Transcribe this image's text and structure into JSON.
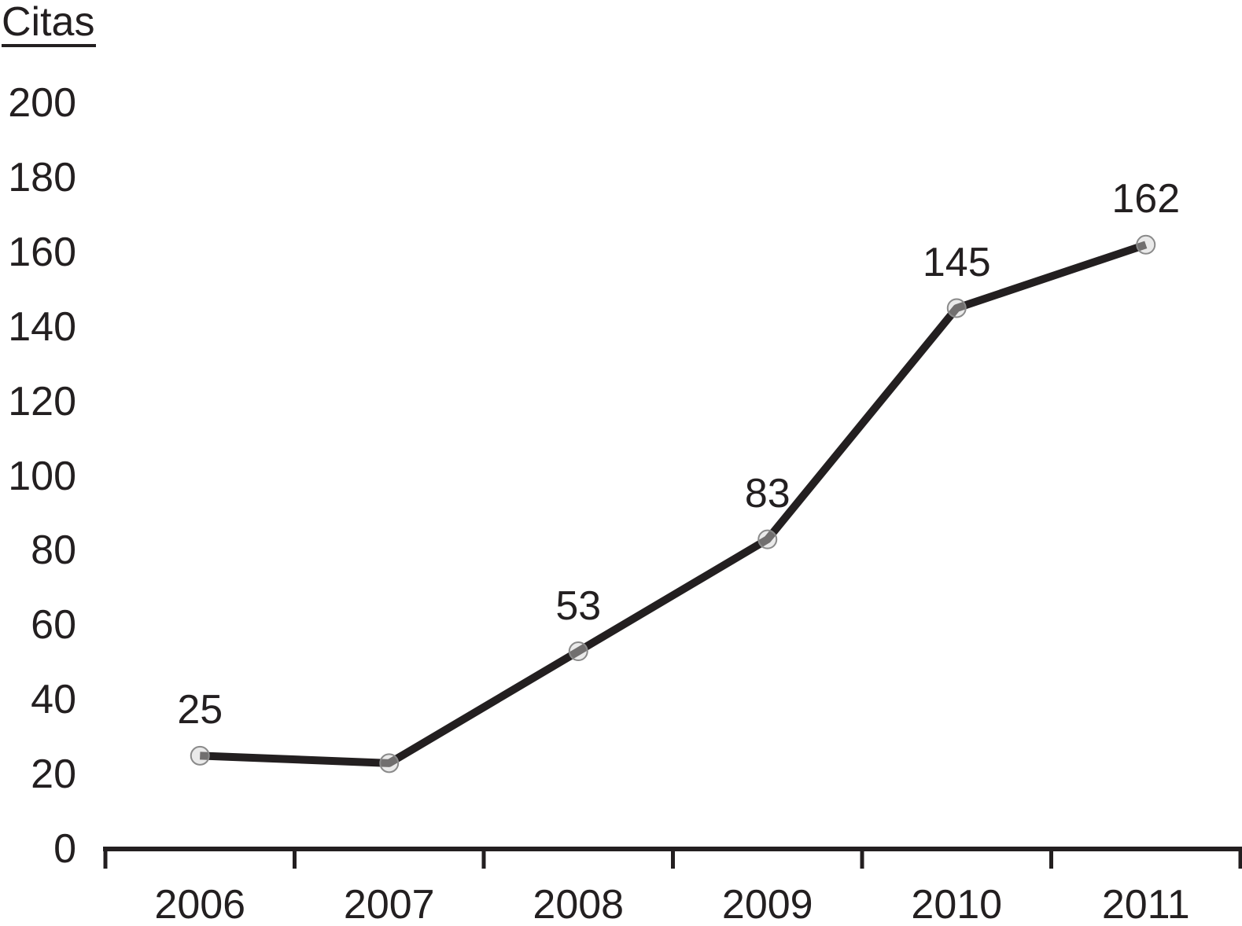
{
  "chart_data": {
    "type": "line",
    "title": "Citas",
    "categories": [
      "2006",
      "2007",
      "2008",
      "2009",
      "2010",
      "2011"
    ],
    "series": [
      {
        "name": "Citas",
        "values": [
          25,
          23,
          53,
          83,
          145,
          162
        ]
      }
    ],
    "point_labels": [
      "25",
      "",
      "53",
      "83",
      "145",
      "162"
    ],
    "xlabel": "",
    "ylabel": "Citas",
    "ylim": [
      0,
      200
    ],
    "ytick_step": 20,
    "ytick_labels": [
      "0",
      "20",
      "40",
      "60",
      "80",
      "100",
      "120",
      "140",
      "160",
      "180",
      "200"
    ],
    "grid": false,
    "legend": "none",
    "colors": {
      "line": "#231f20",
      "marker_fill": "#d0d0d0",
      "marker_stroke": "#8a8a8a",
      "axis": "#231f20",
      "text": "#231f20",
      "background": "#ffffff"
    }
  }
}
